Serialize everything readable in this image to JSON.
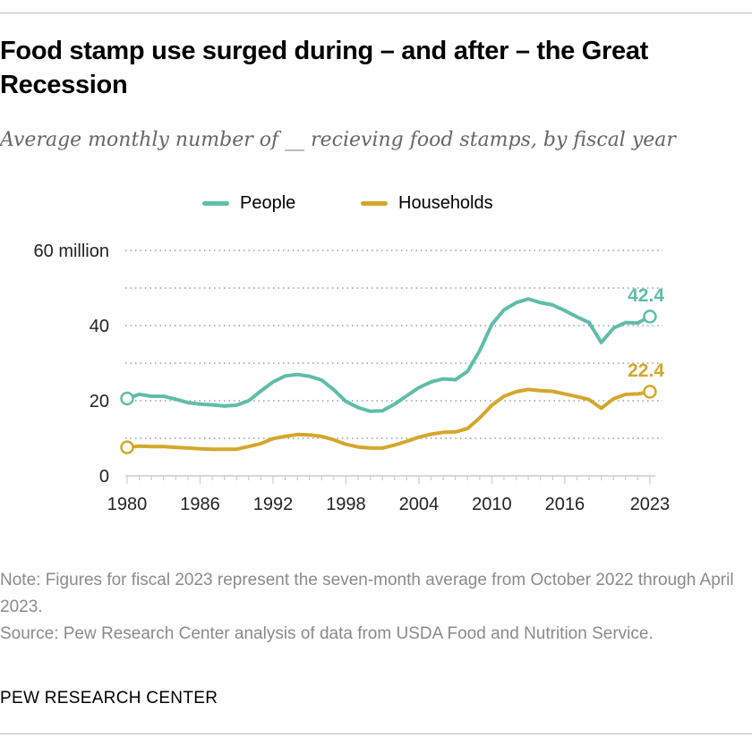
{
  "title": "Food stamp use surged during – and after – the Great Recession",
  "subtitle": "Average monthly number of __ recieving food stamps, by fiscal year",
  "note": "Note: Figures for fiscal 2023 represent the seven-month average from October 2022 through April 2023.",
  "source": "Source: Pew Research Center analysis of data from USDA Food and Nutrition Service.",
  "brand": "PEW RESEARCH CENTER",
  "chart_data": {
    "type": "line",
    "ylim": [
      0,
      60
    ],
    "yticks": [
      0,
      10,
      20,
      30,
      40,
      50,
      60
    ],
    "ytick_labels": [
      {
        "v": 0,
        "label": "0"
      },
      {
        "v": 20,
        "label": "20"
      },
      {
        "v": 40,
        "label": "40"
      },
      {
        "v": 60,
        "label": "60 million"
      }
    ],
    "xticks": [
      1980,
      1986,
      1992,
      1998,
      2004,
      2010,
      2016,
      2023
    ],
    "grid": true,
    "legend_placement": "top",
    "x": [
      1980,
      1981,
      1982,
      1983,
      1984,
      1985,
      1986,
      1987,
      1988,
      1989,
      1990,
      1991,
      1992,
      1993,
      1994,
      1995,
      1996,
      1997,
      1998,
      1999,
      2000,
      2001,
      2002,
      2003,
      2004,
      2005,
      2006,
      2007,
      2008,
      2009,
      2010,
      2011,
      2012,
      2013,
      2014,
      2015,
      2016,
      2017,
      2018,
      2019,
      2020,
      2021,
      2022,
      2023
    ],
    "series": [
      {
        "name": "People",
        "color": "#5fbdaa",
        "end_label": "42.4",
        "values": [
          20.6,
          21.7,
          21.2,
          21.2,
          20.4,
          19.5,
          19.1,
          18.9,
          18.6,
          18.8,
          20.0,
          22.6,
          25.0,
          26.6,
          27.0,
          26.5,
          25.5,
          22.9,
          19.8,
          18.2,
          17.2,
          17.3,
          19.1,
          21.3,
          23.5,
          25.0,
          25.8,
          25.6,
          27.8,
          33.3,
          40.3,
          44.2,
          46.1,
          47.1,
          46.1,
          45.5,
          44.0,
          42.3,
          40.8,
          35.5,
          39.3,
          40.8,
          40.7,
          42.4
        ]
      },
      {
        "name": "Households",
        "color": "#d4a72c",
        "end_label": "22.4",
        "values": [
          7.6,
          7.9,
          7.8,
          7.8,
          7.6,
          7.4,
          7.2,
          7.1,
          7.1,
          7.1,
          7.8,
          8.6,
          9.9,
          10.5,
          11.0,
          10.9,
          10.5,
          9.6,
          8.4,
          7.7,
          7.4,
          7.4,
          8.2,
          9.2,
          10.3,
          11.1,
          11.6,
          11.7,
          12.6,
          15.4,
          18.8,
          21.2,
          22.4,
          23.0,
          22.7,
          22.5,
          21.8,
          21.1,
          20.3,
          18.0,
          20.5,
          21.7,
          21.8,
          22.4
        ]
      }
    ]
  }
}
